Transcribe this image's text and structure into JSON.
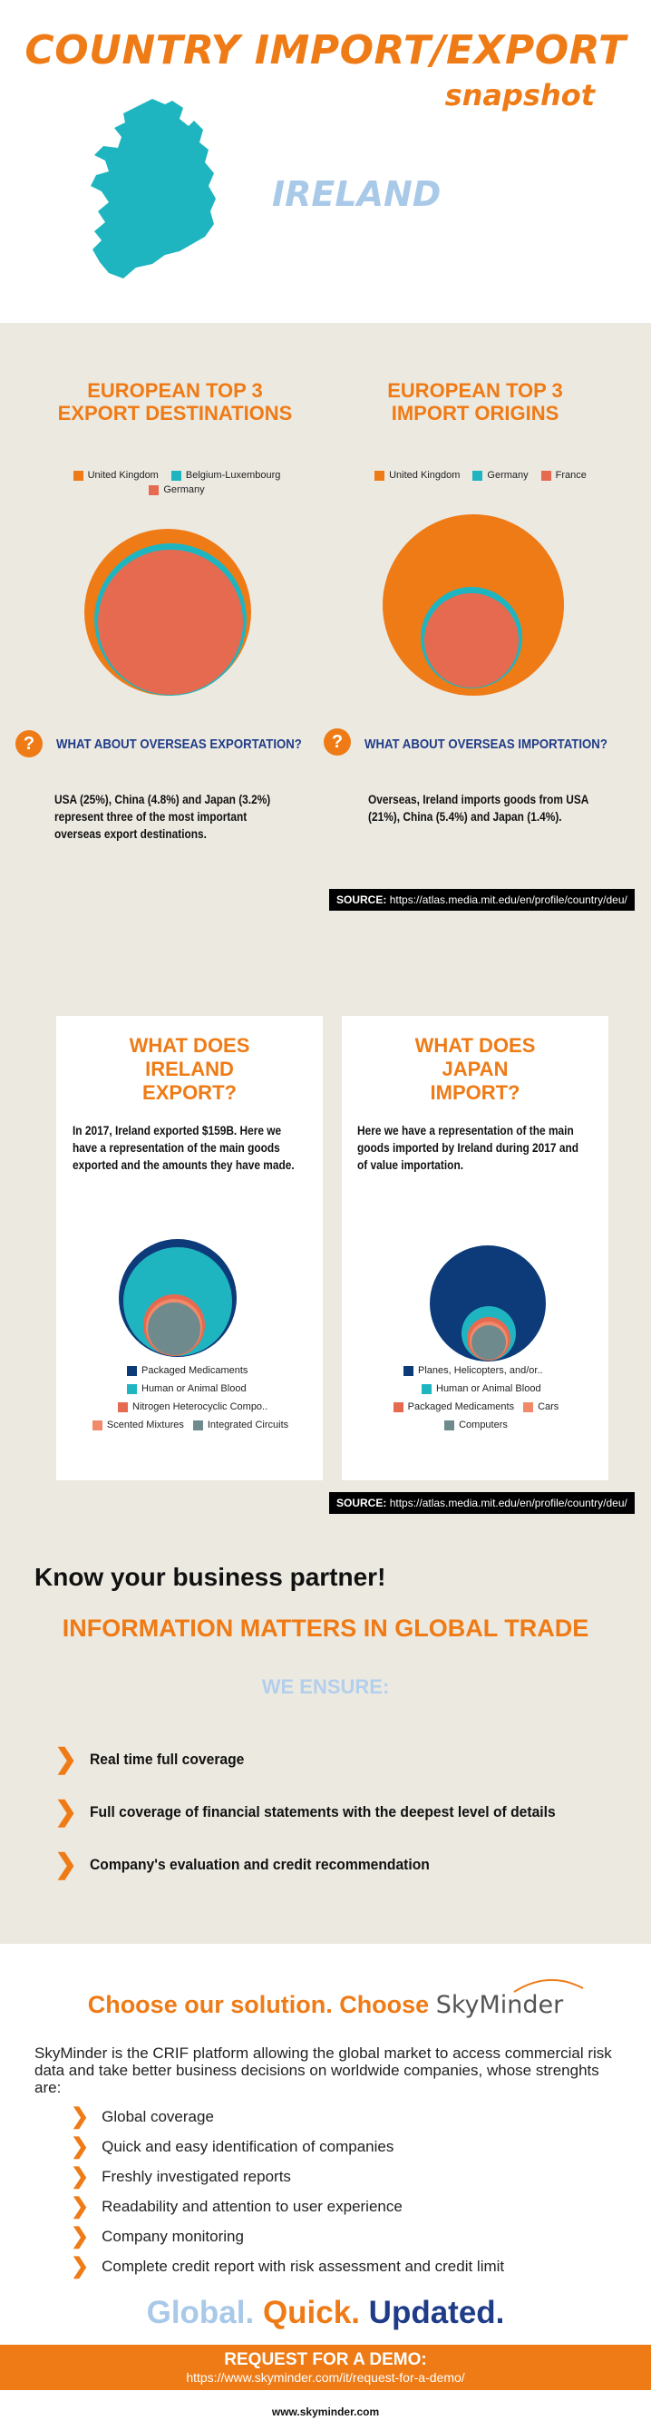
{
  "header": {
    "title": "COUNTRY IMPORT/EXPORT",
    "subtitle": "snapshot",
    "country": "IRELAND",
    "map_icon": "ireland-map-icon"
  },
  "colors": {
    "orange": "#ef7b16",
    "teal": "#1eb5c0",
    "salmon": "#e66a4f",
    "navy": "#0d3a78",
    "slate": "#6e8a8c",
    "light_blue": "#a9c9e8",
    "beige": "#ece9e1"
  },
  "trade": {
    "export_heading": "EUROPEAN TOP 3 EXPORT DESTINATIONS",
    "import_heading": "EUROPEAN TOP 3 IMPORT ORIGINS",
    "export_legend": [
      {
        "label": "United Kingdom",
        "color": "#ef7b16"
      },
      {
        "label": "Belgium-Luxembourg",
        "color": "#1eb5c0"
      },
      {
        "label": "Germany",
        "color": "#e66a4f"
      }
    ],
    "import_legend": [
      {
        "label": "United Kingdom",
        "color": "#ef7b16"
      },
      {
        "label": "Germany",
        "color": "#1eb5c0"
      },
      {
        "label": "France",
        "color": "#e66a4f"
      }
    ],
    "export_question": "WHAT ABOUT OVERSEAS EXPORTATION?",
    "import_question": "WHAT ABOUT OVERSEAS IMPORTATION?",
    "question_mark": "?",
    "export_text": "USA (25%), China (4.8%) and Japan (3.2%) represent three of the most important overseas export destinations.",
    "import_text": "Overseas, Ireland imports goods from USA (21%), China (5.4%) and Japan (1.4%).",
    "source_label": "SOURCE:",
    "source_url": "https://atlas.media.mit.edu/en/profile/country/deu/"
  },
  "goods": {
    "export_heading": "WHAT DOES IRELAND EXPORT?",
    "import_heading": "WHAT DOES JAPAN IMPORT?",
    "export_text": "In 2017, Ireland exported $159B.  Here we have a representation of the main goods exported and the amounts they have made.",
    "import_text": "Here we have a representation of the main goods imported by Ireland during 2017 and of value importation.",
    "export_legend": [
      {
        "label": "Packaged Medicaments",
        "color": "#0d3a78"
      },
      {
        "label": "Human or Animal Blood",
        "color": "#1eb5c0"
      },
      {
        "label": "Nitrogen Heterocyclic Compo..",
        "color": "#e66a4f"
      },
      {
        "label": "Scented Mixtures",
        "color": "#f08a6a"
      },
      {
        "label": "Integrated Circuits",
        "color": "#6e8a8c"
      }
    ],
    "import_legend": [
      {
        "label": "Planes, Helicopters, and/or..",
        "color": "#0d3a78"
      },
      {
        "label": "Human or Animal Blood",
        "color": "#1eb5c0"
      },
      {
        "label": "Packaged Medicaments",
        "color": "#e66a4f"
      },
      {
        "label": "Cars",
        "color": "#f08a6a"
      },
      {
        "label": "Computers",
        "color": "#6e8a8c"
      }
    ],
    "source_label": "SOURCE:",
    "source_url": "https://atlas.media.mit.edu/en/profile/country/deu/"
  },
  "partner": {
    "know": "Know your business partner!",
    "info": "INFORMATION MATTERS IN GLOBAL TRADE",
    "ensure": "WE ENSURE:",
    "items": [
      "Real time full coverage",
      "Full coverage of financial statements with the deepest level of details",
      "Company's evaluation and credit recommendation"
    ]
  },
  "solution": {
    "choose": "Choose our solution. Choose",
    "brand": "SkyMinder",
    "description": "SkyMinder is the CRIF platform allowing the global market to access commercial risk data and take better business decisions on worldwide companies, whose strenghts are:",
    "features": [
      "Global coverage",
      "Quick and easy identification of companies",
      "Freshly investigated reports",
      "Readability and attention to user experience",
      "Company monitoring",
      "Complete credit report with risk assessment and credit limit"
    ],
    "tagline_1": "Global.",
    "tagline_2": "Quick.",
    "tagline_3": "Updated."
  },
  "cta": {
    "label": "REQUEST FOR A DEMO:",
    "url": "https://www.skyminder.com/it/request-for-a-demo/"
  },
  "footer": {
    "url": "www.skyminder.com"
  }
}
